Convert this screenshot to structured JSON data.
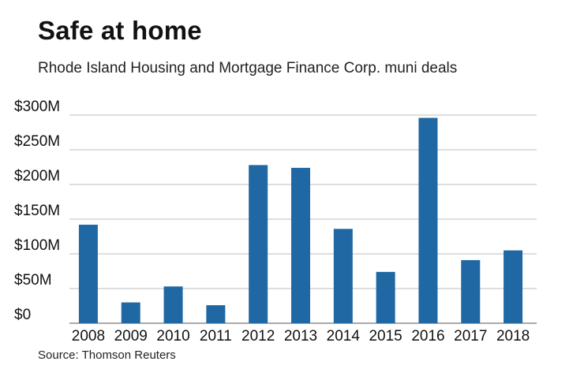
{
  "title": "Safe at home",
  "subtitle": "Rhode Island Housing and Mortgage Finance Corp. muni deals",
  "source": "Source: Thomson Reuters",
  "colors": {
    "bar": "#1f68a3",
    "grid": "#bdbdbd",
    "axis": "#555555"
  },
  "chart_data": {
    "type": "bar",
    "title": "Safe at home",
    "subtitle": "Rhode Island Housing and Mortgage Finance Corp. muni deals",
    "xlabel": "",
    "ylabel": "",
    "categories": [
      "2008",
      "2009",
      "2010",
      "2011",
      "2012",
      "2013",
      "2014",
      "2015",
      "2016",
      "2017",
      "2018"
    ],
    "series": [
      {
        "values": [
          142,
          30,
          53,
          26,
          228,
          224,
          136,
          74,
          296,
          91,
          105
        ]
      }
    ],
    "unit": "$M",
    "ylim": [
      0,
      300
    ],
    "yticks": [
      0,
      50,
      100,
      150,
      200,
      250,
      300
    ],
    "ytick_labels": [
      "$0",
      "$50M",
      "$100M",
      "$150M",
      "$200M",
      "$250M",
      "$300M"
    ],
    "grid": true,
    "legend": "none"
  }
}
